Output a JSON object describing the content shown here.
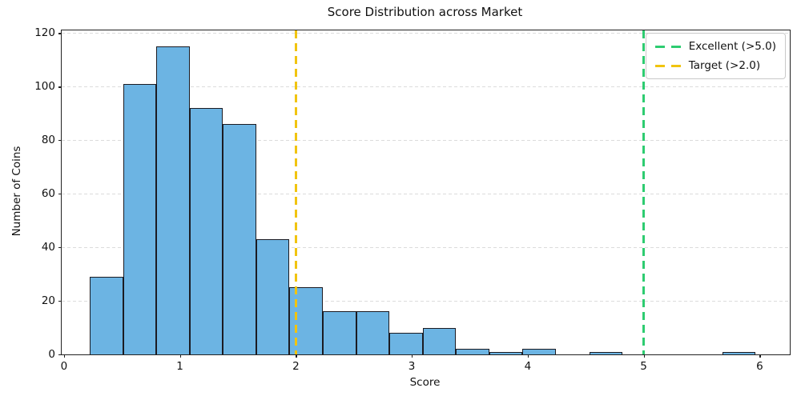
{
  "chart_data": {
    "type": "bar",
    "subtype": "histogram",
    "title": "Score Distribution across Market",
    "xlabel": "Score",
    "ylabel": "Number of Coins",
    "bin_start": 0.2215,
    "bin_width": 0.2872,
    "counts": [
      29,
      101,
      115,
      92,
      86,
      43,
      25,
      16,
      16,
      8,
      10,
      2,
      1,
      2,
      0,
      1,
      0,
      0,
      0,
      1
    ],
    "xticks": [
      0,
      1,
      2,
      3,
      4,
      5,
      6
    ],
    "yticks": [
      0,
      20,
      40,
      60,
      80,
      100,
      120
    ],
    "xlim": [
      -0.02,
      6.26
    ],
    "ylim": [
      0,
      121
    ],
    "grid": "horizontal-dashed",
    "legend_position": "top-right",
    "bar_color": "#6CB4E3",
    "bar_edge_color": "#1b1b22",
    "vlines": [
      {
        "x": 5.0,
        "label": "Excellent (>5.0)",
        "color": "#2ECC71",
        "style": "dashed",
        "name": "excellent-threshold-line"
      },
      {
        "x": 2.0,
        "label": "Target (>2.0)",
        "color": "#F1C40F",
        "style": "dashed",
        "name": "target-threshold-line"
      }
    ]
  }
}
